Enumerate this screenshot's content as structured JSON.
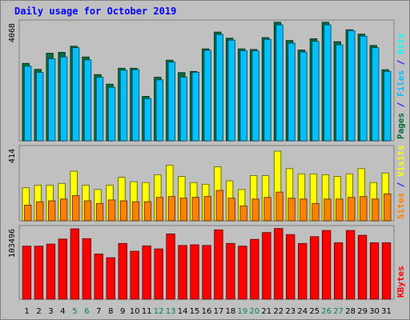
{
  "chart_data": {
    "type": "bar",
    "title": "Daily usage for October 2019",
    "categories": [
      "1",
      "2",
      "3",
      "4",
      "5",
      "6",
      "7",
      "8",
      "9",
      "10",
      "11",
      "12",
      "13",
      "14",
      "15",
      "16",
      "17",
      "18",
      "19",
      "20",
      "21",
      "22",
      "23",
      "24",
      "25",
      "26",
      "27",
      "28",
      "29",
      "30",
      "31"
    ],
    "weekend_days": [
      "5",
      "6",
      "12",
      "13",
      "19",
      "20",
      "26",
      "27"
    ],
    "panels": [
      {
        "id": "hits",
        "max_label": "4068",
        "ymax": 4068,
        "axis_label_parts": [
          "Pages",
          "Files",
          "Hits"
        ],
        "series": [
          {
            "name": "Pages",
            "color": "#006f3b",
            "values": [
              2680,
              2470,
              3030,
              3060,
              3270,
              2900,
              2290,
              1960,
              2510,
              2510,
              1540,
              2200,
              2790,
              2360,
              2400,
              3180,
              3760,
              3550,
              3180,
              3160,
              3570,
              4100,
              3470,
              3140,
              3530,
              4100,
              3430,
              3840,
              3690,
              3300,
              2460
            ]
          },
          {
            "name": "Files",
            "color": "#00c0ff",
            "values": [
              2580,
              2370,
              2840,
              2900,
              3220,
              2800,
              2200,
              1850,
              2440,
              2460,
              1460,
              2110,
              2720,
              2200,
              2370,
              3130,
              3680,
              3480,
              3120,
              3110,
              3510,
              4010,
              3380,
              3070,
              3440,
              4010,
              3320,
              3810,
              3620,
              3220,
              2400
            ]
          },
          {
            "name": "Hits",
            "color": "#00ffff",
            "values": []
          }
        ]
      },
      {
        "id": "visits",
        "max_label": "414",
        "ymax": 414,
        "axis_label_parts": [
          "Sites",
          "Visits"
        ],
        "series": [
          {
            "name": "Visits",
            "color": "#ffff00",
            "values": [
              190,
              205,
              205,
              215,
              285,
              205,
              180,
              205,
              250,
              225,
              220,
              265,
              320,
              255,
              220,
              210,
              310,
              230,
              180,
              260,
              260,
              400,
              300,
              270,
              270,
              265,
              255,
              270,
              300,
              220,
              275
            ]
          },
          {
            "name": "Sites",
            "color": "#ff8000",
            "values": [
              90,
              110,
              115,
              125,
              145,
              115,
              100,
              120,
              115,
              110,
              110,
              135,
              140,
              130,
              135,
              140,
              175,
              130,
              85,
              125,
              135,
              165,
              130,
              125,
              100,
              125,
              125,
              135,
              140,
              125,
              155
            ]
          }
        ]
      },
      {
        "id": "kbytes",
        "max_label": "103496",
        "ymax": 103496,
        "axis_label_parts": [
          "KBytes"
        ],
        "series": [
          {
            "name": "KBytes",
            "color": "#ff0000",
            "values": [
              78000,
              78000,
              81000,
              88500,
              103496,
              89000,
              66500,
              61000,
              82000,
              70500,
              78500,
              74000,
              96000,
              79000,
              80000,
              79000,
              102000,
              82000,
              78000,
              88000,
              98000,
              104000,
              95000,
              82000,
              92000,
              101000,
              83000,
              101000,
              94000,
              83000,
              83000
            ]
          }
        ]
      }
    ],
    "colors": {
      "background": "#c0c0c0",
      "axis_text": "#000000",
      "weekend_text": "#00805c",
      "title": "#0000ff",
      "label_separator": "#0000ff"
    }
  }
}
